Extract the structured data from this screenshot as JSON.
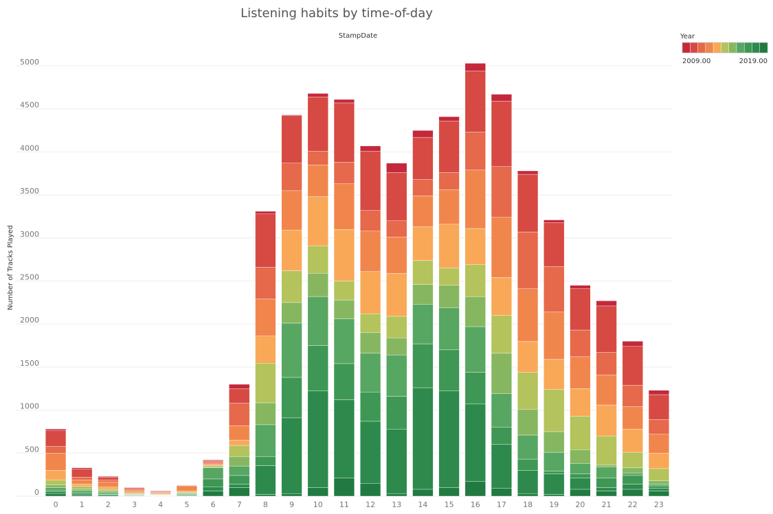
{
  "chart_data": {
    "type": "stacked_bar",
    "title": "Listening habits by time-of-day",
    "x_label": "StampDate",
    "y_label": "Number of Tracks Played",
    "categories": [
      "0",
      "1",
      "2",
      "3",
      "4",
      "5",
      "6",
      "7",
      "8",
      "9",
      "10",
      "11",
      "12",
      "13",
      "14",
      "15",
      "16",
      "17",
      "18",
      "19",
      "20",
      "21",
      "22",
      "23"
    ],
    "series": [
      {
        "color": "#217a41",
        "values": [
          30,
          15,
          10,
          5,
          3,
          5,
          60,
          100,
          20,
          30,
          100,
          210,
          150,
          30,
          80,
          100,
          170,
          90,
          30,
          20,
          80,
          60,
          80,
          60
        ]
      },
      {
        "color": "#2d8a4c",
        "values": [
          20,
          15,
          10,
          5,
          3,
          5,
          50,
          40,
          335,
          880,
          1125,
          910,
          720,
          750,
          1180,
          1125,
          900,
          510,
          270,
          240,
          130,
          40,
          60,
          30
        ]
      },
      {
        "color": "#3e9754",
        "values": [
          20,
          15,
          10,
          5,
          3,
          10,
          90,
          100,
          105,
          470,
          525,
          420,
          340,
          380,
          510,
          475,
          370,
          200,
          130,
          30,
          50,
          110,
          100,
          30
        ]
      },
      {
        "color": "#57a662",
        "values": [
          30,
          20,
          15,
          5,
          3,
          10,
          130,
          110,
          370,
          630,
          570,
          520,
          450,
          480,
          460,
          490,
          530,
          390,
          280,
          220,
          120,
          130,
          30,
          20
        ]
      },
      {
        "color": "#86b760",
        "values": [
          30,
          20,
          15,
          5,
          3,
          5,
          10,
          110,
          255,
          240,
          270,
          220,
          240,
          200,
          230,
          260,
          350,
          470,
          300,
          240,
          160,
          20,
          60,
          40
        ]
      },
      {
        "color": "#b4c35b",
        "values": [
          60,
          30,
          20,
          10,
          5,
          10,
          15,
          130,
          460,
          370,
          320,
          220,
          220,
          250,
          280,
          200,
          370,
          440,
          430,
          490,
          390,
          340,
          180,
          140
        ]
      },
      {
        "color": "#f9a857",
        "values": [
          110,
          25,
          25,
          15,
          10,
          15,
          15,
          60,
          315,
          470,
          570,
          600,
          490,
          500,
          390,
          510,
          420,
          440,
          360,
          350,
          320,
          360,
          270,
          180
        ]
      },
      {
        "color": "#f1864d",
        "values": [
          200,
          50,
          60,
          20,
          10,
          60,
          15,
          170,
          430,
          460,
          370,
          530,
          470,
          420,
          360,
          400,
          680,
          700,
          610,
          550,
          370,
          350,
          260,
          220
        ]
      },
      {
        "color": "#e5694a",
        "values": [
          80,
          30,
          25,
          10,
          5,
          5,
          15,
          260,
          370,
          320,
          160,
          250,
          240,
          190,
          190,
          200,
          440,
          590,
          660,
          530,
          310,
          260,
          250,
          170
        ]
      },
      {
        "color": "#d64a43",
        "values": [
          180,
          95,
          30,
          15,
          10,
          5,
          10,
          170,
          620,
          550,
          630,
          690,
          690,
          560,
          490,
          600,
          710,
          760,
          670,
          510,
          480,
          540,
          450,
          290
        ]
      },
      {
        "color": "#c4283c",
        "values": [
          20,
          15,
          10,
          5,
          5,
          0,
          10,
          50,
          30,
          10,
          40,
          40,
          60,
          110,
          80,
          50,
          90,
          80,
          40,
          30,
          40,
          60,
          60,
          50
        ]
      }
    ],
    "ylim": [
      0,
      5300
    ],
    "yticks": [
      0,
      500,
      1000,
      1500,
      2000,
      2500,
      3000,
      3500,
      4000,
      4500,
      5000
    ],
    "grid": true,
    "legend": {
      "title": "Year",
      "position": "top-right",
      "ticks": [
        {
          "value": 2009,
          "label": "2009.00"
        },
        {
          "value": 2019,
          "label": "2019.00"
        }
      ]
    }
  }
}
